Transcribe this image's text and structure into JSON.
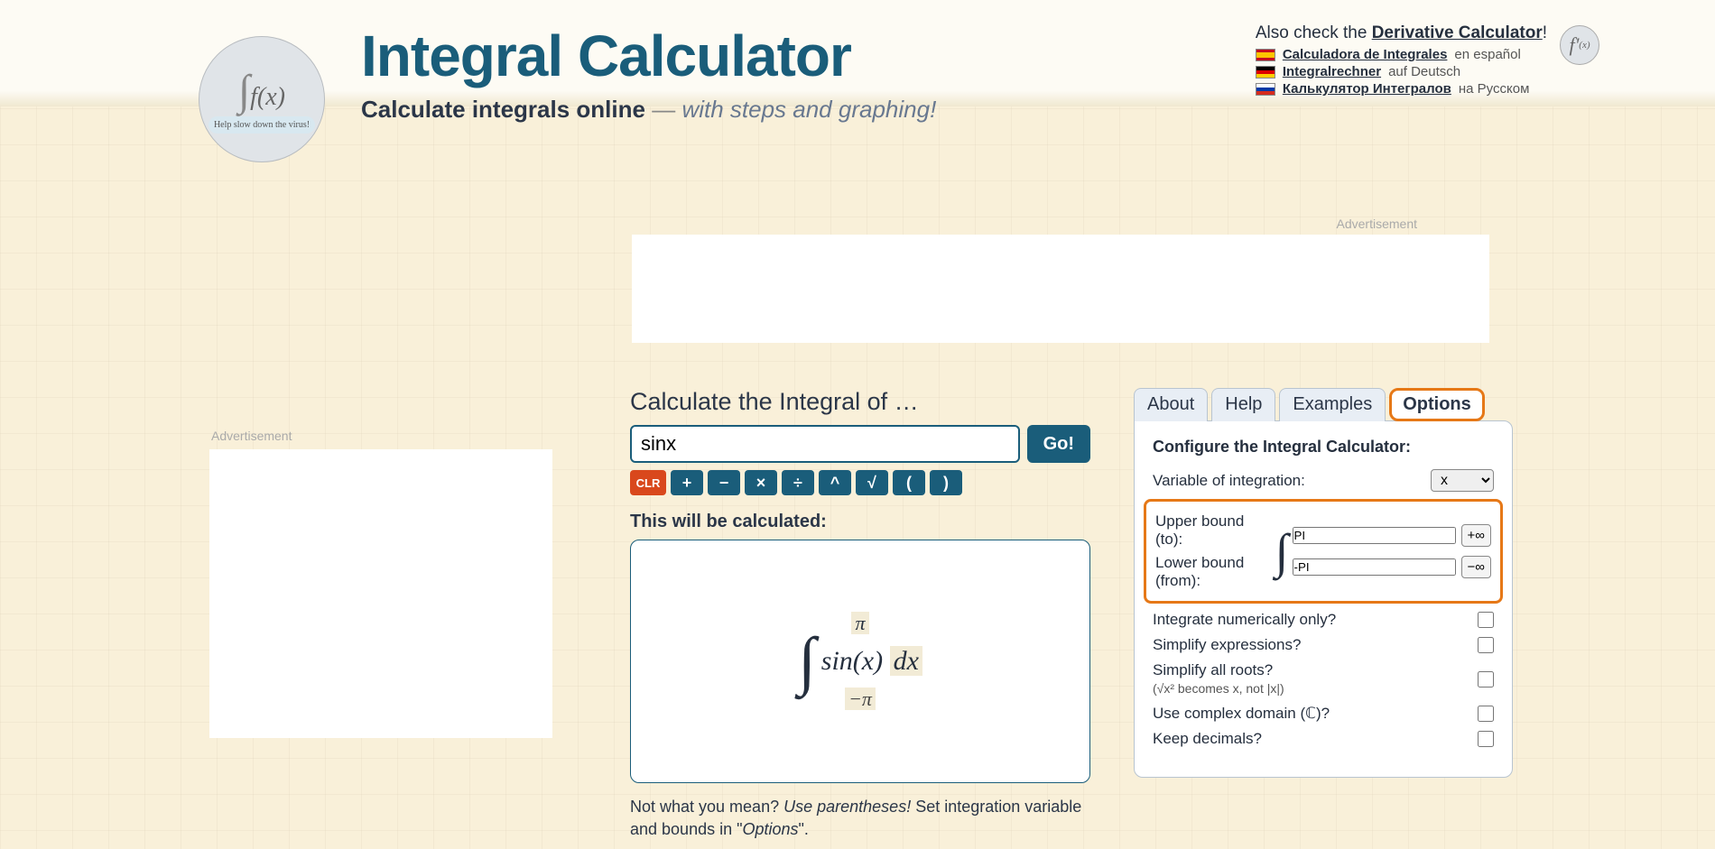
{
  "colors": {
    "primary": "#1a5d7a",
    "accent": "#e67817",
    "bg": "#f9f0d9",
    "text": "#252f3e"
  },
  "header": {
    "title": "Integral Calculator",
    "subtitle_bold": "Calculate integrals online",
    "subtitle_dash": " — ",
    "subtitle_ital": "with steps and graphing!",
    "logo_help": "Help slow down the virus!"
  },
  "topright": {
    "also_prefix": "Also check the ",
    "also_link": "Derivative Calculator",
    "also_suffix": "!",
    "langs": [
      {
        "flag": "es",
        "link": "Calculadora de Integrales",
        "rest": " en español"
      },
      {
        "flag": "de",
        "link": "Integralrechner",
        "rest": " auf Deutsch"
      },
      {
        "flag": "ru",
        "link": "Калькулятор Интегралов",
        "rest": " на Русском"
      }
    ],
    "deriv_icon": "f'(x)"
  },
  "ads": {
    "label": "Advertisement"
  },
  "main": {
    "heading": "Calculate the Integral of …",
    "input_value": "sinx",
    "go": "Go!",
    "keys": [
      "CLR",
      "+",
      "−",
      "×",
      "÷",
      "^",
      "√",
      "(",
      ")"
    ],
    "preview_heading": "This will be calculated:",
    "render": {
      "upper": "π",
      "body": "sin(x)",
      "dx": "dx",
      "lower": "−π"
    },
    "hint_q": "Not what you mean? ",
    "hint_ital": "Use parentheses!",
    "hint_rest1": " Set integration variable and bounds in \"",
    "hint_opts": "Options",
    "hint_rest2": "\"."
  },
  "tabs": [
    "About",
    "Help",
    "Examples",
    "Options"
  ],
  "options": {
    "title": "Configure the Integral Calculator:",
    "var_label": "Variable of integration:",
    "var_value": "x",
    "upper_label": "Upper bound (to):",
    "upper_value": "PI",
    "upper_inf": "+∞",
    "lower_label": "Lower bound (from):",
    "lower_value": "-PI",
    "lower_inf": "−∞",
    "numeric": "Integrate numerically only?",
    "simplify": "Simplify expressions?",
    "roots": "Simplify all roots?",
    "roots_note": "(√x² becomes x, not |x|)",
    "complex": "Use complex domain (ℂ)?",
    "decimals": "Keep decimals?"
  }
}
